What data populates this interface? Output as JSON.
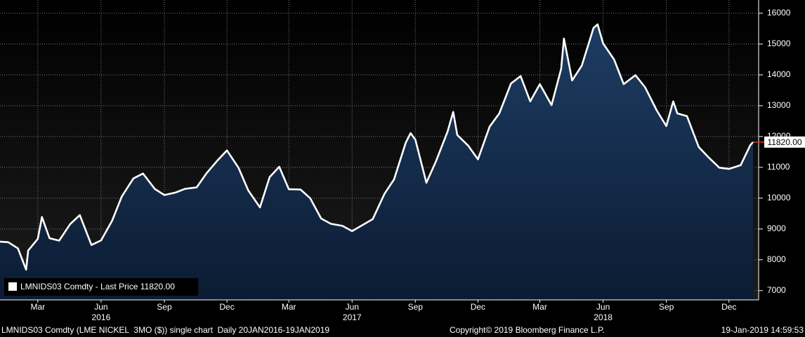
{
  "chart_data": {
    "type": "area_line",
    "series": [
      {
        "name": "LMNIDS03 Comdty - Last Price",
        "color": "#ffffff",
        "x": [
          "2016-01-20",
          "2016-02-01",
          "2016-02-15",
          "2016-02-27",
          "2016-03-01",
          "2016-03-15",
          "2016-03-21",
          "2016-04-01",
          "2016-04-15",
          "2016-05-01",
          "2016-05-15",
          "2016-06-01",
          "2016-06-15",
          "2016-07-01",
          "2016-07-15",
          "2016-08-01",
          "2016-08-15",
          "2016-09-01",
          "2016-09-15",
          "2016-10-01",
          "2016-10-15",
          "2016-11-01",
          "2016-11-15",
          "2016-12-01",
          "2016-12-15",
          "2017-01-01",
          "2017-01-15",
          "2017-02-01",
          "2017-02-15",
          "2017-03-01",
          "2017-03-15",
          "2017-04-01",
          "2017-04-15",
          "2017-05-01",
          "2017-05-15",
          "2017-06-01",
          "2017-06-15",
          "2017-07-01",
          "2017-07-15",
          "2017-08-01",
          "2017-08-15",
          "2017-09-01",
          "2017-09-08",
          "2017-09-15",
          "2017-10-01",
          "2017-10-15",
          "2017-11-01",
          "2017-11-09",
          "2017-11-15",
          "2017-12-01",
          "2017-12-15",
          "2018-01-01",
          "2018-01-15",
          "2018-02-01",
          "2018-02-15",
          "2018-03-01",
          "2018-03-15",
          "2018-04-01",
          "2018-04-15",
          "2018-04-19",
          "2018-05-01",
          "2018-05-15",
          "2018-06-01",
          "2018-06-07",
          "2018-06-15",
          "2018-07-01",
          "2018-07-15",
          "2018-08-01",
          "2018-08-15",
          "2018-09-01",
          "2018-09-15",
          "2018-09-25",
          "2018-10-01",
          "2018-10-15",
          "2018-11-01",
          "2018-11-15",
          "2018-12-01",
          "2018-12-15",
          "2019-01-01",
          "2019-01-15",
          "2019-01-19"
        ],
        "values": [
          8590,
          8570,
          8370,
          7680,
          8300,
          8680,
          9390,
          8700,
          8620,
          9160,
          9450,
          8480,
          8630,
          9270,
          10050,
          10640,
          10800,
          10300,
          10100,
          10180,
          10300,
          10350,
          10800,
          11220,
          11550,
          10980,
          10250,
          9700,
          10680,
          11020,
          10290,
          10280,
          10000,
          9340,
          9170,
          9100,
          8930,
          9140,
          9320,
          10140,
          10610,
          11800,
          12110,
          11900,
          10500,
          11200,
          12170,
          12800,
          12050,
          11700,
          11260,
          12320,
          12750,
          13720,
          13960,
          13140,
          13700,
          13020,
          14200,
          15180,
          13820,
          14300,
          15520,
          15640,
          15020,
          14500,
          13700,
          13990,
          13600,
          12850,
          12340,
          13140,
          12750,
          12660,
          11660,
          11330,
          10990,
          10950,
          11070,
          11720,
          11820
        ]
      }
    ],
    "last_price_label": "11820.00",
    "xlim": [
      "2016-01-20",
      "2019-01-19"
    ],
    "ylim": [
      6700,
      16430
    ],
    "yticks": [
      7000,
      8000,
      9000,
      10000,
      11000,
      12000,
      13000,
      14000,
      15000,
      16000
    ],
    "xticks": [
      {
        "value": "2016-03",
        "label": "Mar"
      },
      {
        "value": "2016-06",
        "label": "Jun"
      },
      {
        "value": "2016-09",
        "label": "Sep"
      },
      {
        "value": "2016-12",
        "label": "Dec"
      },
      {
        "value": "2017-03",
        "label": "Mar"
      },
      {
        "value": "2017-06",
        "label": "Jun"
      },
      {
        "value": "2017-09",
        "label": "Sep"
      },
      {
        "value": "2017-12",
        "label": "Dec"
      },
      {
        "value": "2018-03",
        "label": "Mar"
      },
      {
        "value": "2018-06",
        "label": "Jun"
      },
      {
        "value": "2018-09",
        "label": "Sep"
      },
      {
        "value": "2018-12",
        "label": "Dec"
      }
    ],
    "xtick_years": [
      {
        "value": "2016-06",
        "label": "2016"
      },
      {
        "value": "2017-06",
        "label": "2017"
      },
      {
        "value": "2018-06",
        "label": "2018"
      }
    ],
    "grid": true,
    "footer": [
      "LMNIDS03 Comdty (LME NICKEL  3MO ($)) single chart  Daily 20JAN2016-19JAN2019",
      "Copyright© 2019 Bloomberg Finance L.P.",
      "19-Jan-2019 14:59:53"
    ]
  }
}
